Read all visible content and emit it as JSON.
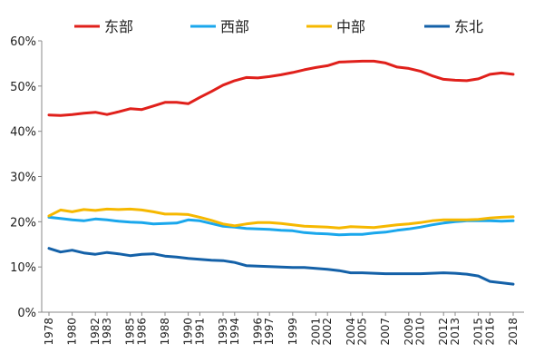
{
  "chart_data": {
    "type": "line",
    "title": "",
    "xlabel": "",
    "ylabel": "",
    "ylim": [
      0,
      60
    ],
    "yticks": [
      "0%",
      "10%",
      "20%",
      "30%",
      "40%",
      "50%",
      "60%"
    ],
    "grid": false,
    "legend": "top",
    "x": [
      "1978",
      "1979",
      "1980",
      "1981",
      "1982",
      "1983",
      "1984",
      "1985",
      "1986",
      "1987",
      "1988",
      "1989",
      "1990",
      "1991",
      "1992",
      "1993",
      "1994",
      "1995",
      "1996",
      "1997",
      "1998",
      "1999",
      "2000",
      "2001",
      "2002",
      "2003",
      "2004",
      "2005",
      "2006",
      "2007",
      "2008",
      "2009",
      "2010",
      "2011",
      "2012",
      "2013",
      "2014",
      "2015",
      "2016",
      "2017",
      "2018"
    ],
    "xtick_labels": [
      "1978",
      "1980",
      "1982",
      "1983",
      "1985",
      "1986",
      "1988",
      "1990",
      "1991",
      "1993",
      "1994",
      "1996",
      "1997",
      "1999",
      "2001",
      "2002",
      "2004",
      "2005",
      "2007",
      "2009",
      "2010",
      "2012",
      "2013",
      "2015",
      "2016",
      "2018"
    ],
    "series": [
      {
        "name": "东部",
        "color": "#e0201b",
        "values": [
          43.6,
          43.5,
          43.7,
          44.0,
          44.2,
          43.7,
          44.3,
          45.0,
          44.8,
          45.6,
          46.4,
          46.4,
          46.1,
          47.5,
          48.8,
          50.2,
          51.2,
          51.9,
          51.8,
          52.1,
          52.5,
          53.0,
          53.6,
          54.1,
          54.5,
          55.3,
          55.4,
          55.5,
          55.5,
          55.1,
          54.2,
          53.9,
          53.3,
          52.3,
          51.5,
          51.3,
          51.2,
          51.6,
          52.6,
          52.9,
          52.6
        ]
      },
      {
        "name": "西部",
        "color": "#1aa7ec",
        "values": [
          21.0,
          20.7,
          20.4,
          20.2,
          20.6,
          20.4,
          20.1,
          19.9,
          19.8,
          19.5,
          19.6,
          19.7,
          20.4,
          20.2,
          19.6,
          19.0,
          18.8,
          18.5,
          18.4,
          18.3,
          18.1,
          18.0,
          17.6,
          17.4,
          17.3,
          17.1,
          17.2,
          17.2,
          17.5,
          17.7,
          18.1,
          18.4,
          18.8,
          19.3,
          19.7,
          20.0,
          20.2,
          20.2,
          20.2,
          20.1,
          20.2
        ]
      },
      {
        "name": "中部",
        "color": "#f6b800",
        "values": [
          21.3,
          22.6,
          22.2,
          22.7,
          22.5,
          22.8,
          22.7,
          22.8,
          22.6,
          22.2,
          21.7,
          21.7,
          21.6,
          21.0,
          20.3,
          19.5,
          19.1,
          19.5,
          19.8,
          19.8,
          19.6,
          19.3,
          19.0,
          18.9,
          18.8,
          18.6,
          18.9,
          18.8,
          18.7,
          19.0,
          19.3,
          19.5,
          19.8,
          20.2,
          20.4,
          20.4,
          20.4,
          20.5,
          20.8,
          21.0,
          21.1
        ]
      },
      {
        "name": "东北",
        "color": "#1461a8",
        "values": [
          14.1,
          13.3,
          13.7,
          13.1,
          12.8,
          13.2,
          12.9,
          12.5,
          12.8,
          12.9,
          12.4,
          12.2,
          11.9,
          11.7,
          11.5,
          11.4,
          11.0,
          10.3,
          10.2,
          10.1,
          10.0,
          9.9,
          9.9,
          9.7,
          9.5,
          9.2,
          8.7,
          8.7,
          8.6,
          8.5,
          8.5,
          8.5,
          8.5,
          8.6,
          8.7,
          8.6,
          8.4,
          8.0,
          6.8,
          6.5,
          6.2
        ]
      }
    ]
  }
}
